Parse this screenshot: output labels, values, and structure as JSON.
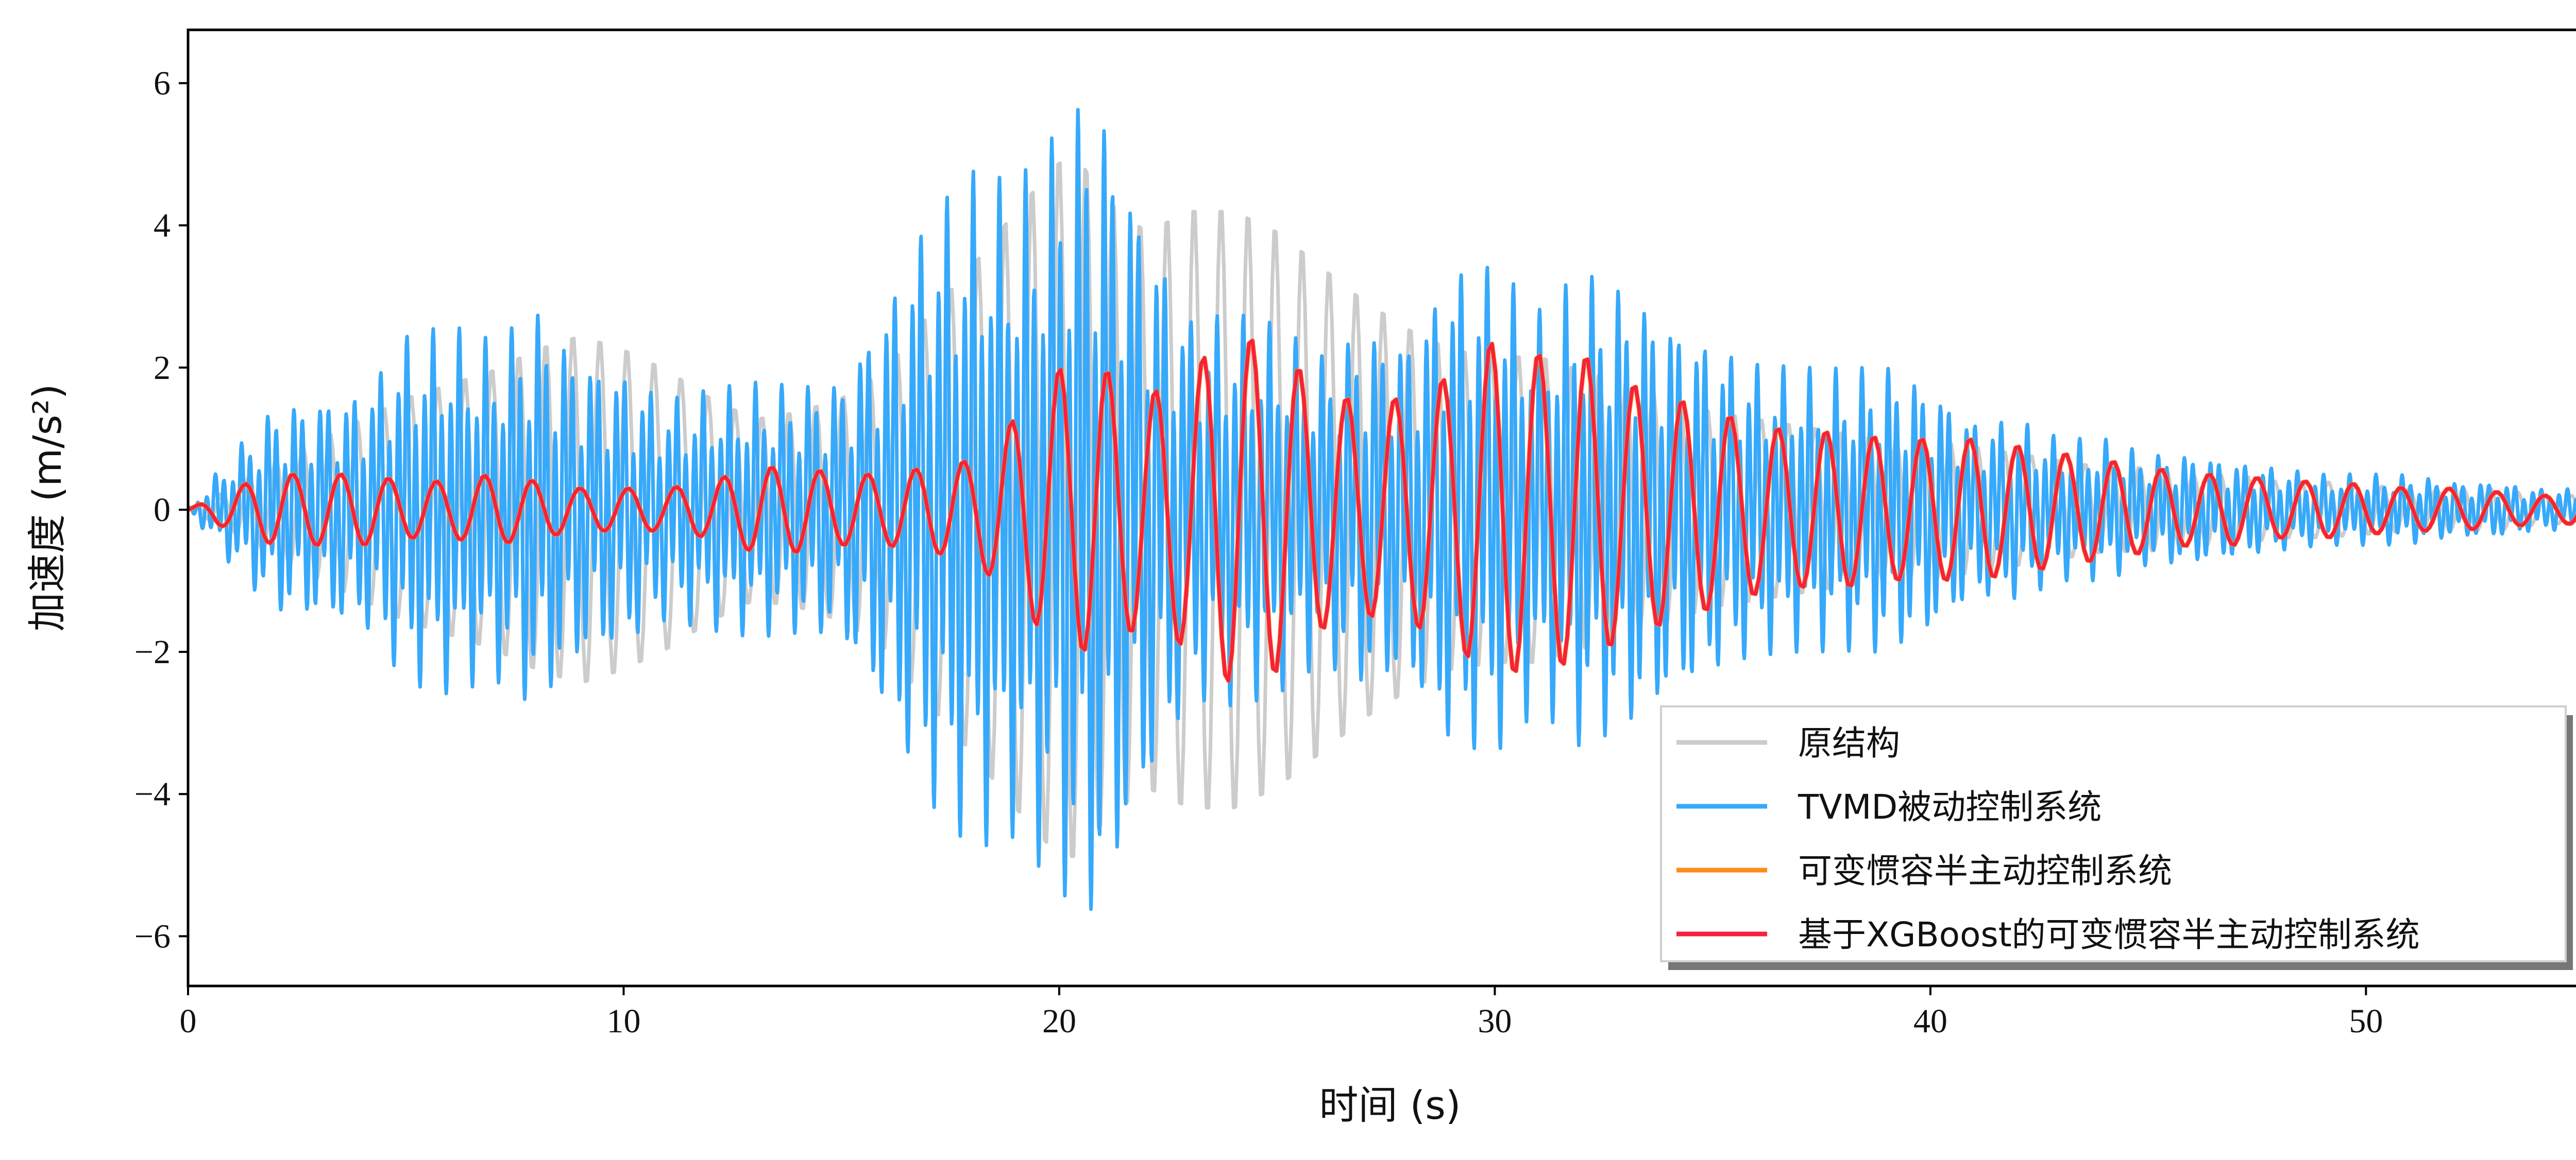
{
  "chart_data": {
    "type": "line",
    "title": "",
    "xlabel": "时间 (s)",
    "ylabel": "加速度 (m/s²)",
    "xlim": [
      0,
      55.2
    ],
    "ylim": [
      -6.7,
      6.75
    ],
    "xticks": [
      "0",
      "10",
      "20",
      "30",
      "40",
      "50"
    ],
    "xtick_values": [
      0,
      10,
      20,
      30,
      40,
      50
    ],
    "yticks": [
      "6",
      "4",
      "2",
      "0",
      "−2",
      "−4",
      "−6"
    ],
    "ytick_values": [
      6,
      4,
      2,
      0,
      -2,
      -4,
      -6
    ],
    "grid": false,
    "legend_position": "lower-right",
    "series": [
      {
        "name": "原结构",
        "color": "#cccccc",
        "x": [
          0,
          1,
          2,
          3,
          4,
          5,
          6,
          7,
          8,
          9,
          10,
          11,
          12,
          13,
          14,
          15,
          16,
          17,
          18,
          19,
          20,
          20.5,
          21,
          22,
          23,
          24,
          25,
          26,
          27,
          28,
          29,
          30,
          31,
          32,
          33,
          34,
          35,
          36,
          37,
          38,
          39,
          40,
          41,
          42,
          43,
          44,
          45,
          46,
          47,
          48,
          49,
          50,
          51,
          52,
          53,
          54,
          55
        ],
        "amplitude": [
          0,
          0.3,
          0.7,
          1.0,
          1.3,
          1.6,
          1.8,
          2.0,
          2.3,
          2.5,
          2.3,
          2.0,
          1.6,
          1.3,
          1.4,
          1.6,
          2.0,
          2.8,
          3.5,
          4.3,
          5.0,
          5.0,
          4.5,
          4.0,
          4.3,
          4.3,
          4.0,
          3.5,
          3.0,
          2.6,
          2.3,
          2.2,
          2.2,
          2.0,
          1.8,
          1.6,
          1.4,
          1.3,
          1.2,
          1.1,
          1.0,
          1.0,
          0.9,
          0.8,
          0.7,
          0.6,
          0.6,
          0.5,
          0.5,
          0.4,
          0.4,
          0.35,
          0.3,
          0.3,
          0.3,
          0.2,
          0.2
        ],
        "period_s": 0.62
      },
      {
        "name": "TVMD被动控制系统",
        "color": "#36a9fb",
        "x": [
          0,
          1,
          2,
          3,
          4,
          5,
          6,
          7,
          8,
          9,
          10,
          11,
          12,
          13,
          14,
          15,
          16,
          17,
          18,
          19,
          20,
          20.6,
          21,
          22,
          23,
          24,
          25,
          26,
          27,
          28,
          29,
          30,
          31,
          32,
          33,
          34,
          35,
          36,
          37,
          38,
          39,
          40,
          41,
          42,
          43,
          44,
          45,
          46,
          47,
          48,
          49,
          50,
          51,
          52,
          53,
          54,
          55
        ],
        "amplitude": [
          0,
          0.8,
          1.5,
          1.6,
          1.7,
          2.5,
          2.6,
          2.4,
          2.9,
          2.2,
          2.0,
          1.6,
          1.7,
          1.8,
          1.8,
          1.9,
          3.0,
          4.3,
          4.8,
          4.6,
          5.5,
          6.1,
          5.9,
          4.2,
          2.8,
          2.8,
          2.6,
          2.2,
          2.6,
          2.5,
          3.5,
          3.5,
          2.8,
          3.4,
          3.2,
          2.8,
          2.4,
          2.1,
          2.0,
          2.0,
          2.1,
          1.8,
          1.3,
          1.3,
          1.0,
          1.0,
          0.8,
          0.8,
          0.7,
          0.6,
          0.5,
          0.5,
          0.5,
          0.4,
          0.4,
          0.3,
          0.3
        ],
        "period_s": 0.2
      },
      {
        "name": "可变惯容半主动控制系统",
        "color": "#ff8c1a",
        "x": [
          0,
          1,
          2,
          3,
          4,
          5,
          6,
          7,
          8,
          9,
          10,
          11,
          12,
          13,
          14,
          15,
          16,
          17,
          18,
          19,
          20,
          21,
          22,
          23,
          24,
          25,
          26,
          27,
          28,
          29,
          30,
          31,
          32,
          33,
          34,
          35,
          36,
          37,
          38,
          39,
          40,
          41,
          42,
          43,
          44,
          45,
          46,
          47,
          48,
          49,
          50,
          51,
          52,
          53,
          54,
          55
        ],
        "amplitude": [
          0,
          0.3,
          0.5,
          0.5,
          0.5,
          0.4,
          0.4,
          0.5,
          0.4,
          0.3,
          0.3,
          0.3,
          0.4,
          0.6,
          0.6,
          0.5,
          0.5,
          0.6,
          0.7,
          1.3,
          2.0,
          2.0,
          1.6,
          2.0,
          2.5,
          2.3,
          1.7,
          1.5,
          1.6,
          1.9,
          2.4,
          2.2,
          2.2,
          1.8,
          1.6,
          1.4,
          1.2,
          1.1,
          1.1,
          1.0,
          1.0,
          1.0,
          0.9,
          0.8,
          0.7,
          0.6,
          0.5,
          0.5,
          0.4,
          0.4,
          0.35,
          0.3,
          0.3,
          0.25,
          0.2,
          0.2
        ],
        "period_s": 1.1
      },
      {
        "name": "基于XGBoost的可变惯容半主动控制系统",
        "color": "#f5213f",
        "x": [
          0,
          1,
          2,
          3,
          4,
          5,
          6,
          7,
          8,
          9,
          10,
          11,
          12,
          13,
          14,
          15,
          16,
          17,
          18,
          19,
          20,
          21,
          22,
          23,
          24,
          25,
          26,
          27,
          28,
          29,
          30,
          31,
          32,
          33,
          34,
          35,
          36,
          37,
          38,
          39,
          40,
          41,
          42,
          43,
          44,
          45,
          46,
          47,
          48,
          49,
          50,
          51,
          52,
          53,
          54,
          55
        ],
        "amplitude": [
          0,
          0.3,
          0.5,
          0.5,
          0.5,
          0.4,
          0.4,
          0.5,
          0.4,
          0.3,
          0.3,
          0.3,
          0.4,
          0.6,
          0.6,
          0.5,
          0.5,
          0.6,
          0.7,
          1.3,
          2.0,
          2.0,
          1.6,
          2.0,
          2.5,
          2.3,
          1.7,
          1.5,
          1.6,
          1.9,
          2.4,
          2.2,
          2.2,
          1.8,
          1.6,
          1.4,
          1.2,
          1.1,
          1.1,
          1.0,
          1.0,
          1.0,
          0.9,
          0.8,
          0.7,
          0.6,
          0.5,
          0.5,
          0.4,
          0.4,
          0.35,
          0.3,
          0.3,
          0.25,
          0.2,
          0.2
        ],
        "period_s": 1.1
      }
    ]
  }
}
